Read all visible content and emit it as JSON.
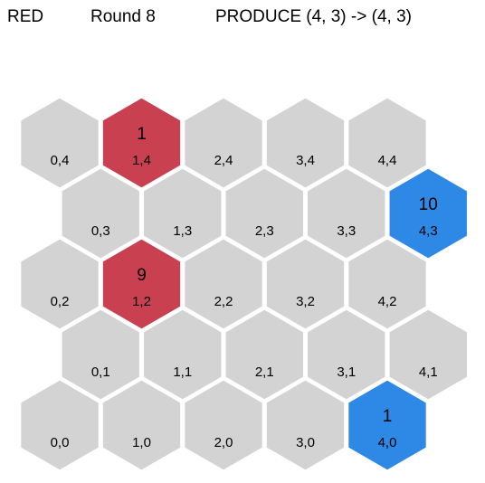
{
  "header": {
    "player": "RED",
    "round": "Round 8",
    "action": "PRODUCE (4, 3) -> (4, 3)"
  },
  "colors": {
    "neutral": "#d3d3d3",
    "red": "#c94150",
    "blue": "#2e88e6"
  },
  "board": {
    "cols": 5,
    "rows": 5,
    "cells": [
      {
        "q": 0,
        "r": 4,
        "label": "0,4",
        "owner": "neutral",
        "value": ""
      },
      {
        "q": 1,
        "r": 4,
        "label": "1,4",
        "owner": "red",
        "value": "1"
      },
      {
        "q": 2,
        "r": 4,
        "label": "2,4",
        "owner": "neutral",
        "value": ""
      },
      {
        "q": 3,
        "r": 4,
        "label": "3,4",
        "owner": "neutral",
        "value": ""
      },
      {
        "q": 4,
        "r": 4,
        "label": "4,4",
        "owner": "neutral",
        "value": ""
      },
      {
        "q": 0,
        "r": 3,
        "label": "0,3",
        "owner": "neutral",
        "value": ""
      },
      {
        "q": 1,
        "r": 3,
        "label": "1,3",
        "owner": "neutral",
        "value": ""
      },
      {
        "q": 2,
        "r": 3,
        "label": "2,3",
        "owner": "neutral",
        "value": ""
      },
      {
        "q": 3,
        "r": 3,
        "label": "3,3",
        "owner": "neutral",
        "value": ""
      },
      {
        "q": 4,
        "r": 3,
        "label": "4,3",
        "owner": "blue",
        "value": "10"
      },
      {
        "q": 0,
        "r": 2,
        "label": "0,2",
        "owner": "neutral",
        "value": ""
      },
      {
        "q": 1,
        "r": 2,
        "label": "1,2",
        "owner": "red",
        "value": "9"
      },
      {
        "q": 2,
        "r": 2,
        "label": "2,2",
        "owner": "neutral",
        "value": ""
      },
      {
        "q": 3,
        "r": 2,
        "label": "3,2",
        "owner": "neutral",
        "value": ""
      },
      {
        "q": 4,
        "r": 2,
        "label": "4,2",
        "owner": "neutral",
        "value": ""
      },
      {
        "q": 0,
        "r": 1,
        "label": "0,1",
        "owner": "neutral",
        "value": ""
      },
      {
        "q": 1,
        "r": 1,
        "label": "1,1",
        "owner": "neutral",
        "value": ""
      },
      {
        "q": 2,
        "r": 1,
        "label": "2,1",
        "owner": "neutral",
        "value": ""
      },
      {
        "q": 3,
        "r": 1,
        "label": "3,1",
        "owner": "neutral",
        "value": ""
      },
      {
        "q": 4,
        "r": 1,
        "label": "4,1",
        "owner": "neutral",
        "value": ""
      },
      {
        "q": 0,
        "r": 0,
        "label": "0,0",
        "owner": "neutral",
        "value": ""
      },
      {
        "q": 1,
        "r": 0,
        "label": "1,0",
        "owner": "neutral",
        "value": ""
      },
      {
        "q": 2,
        "r": 0,
        "label": "2,0",
        "owner": "neutral",
        "value": ""
      },
      {
        "q": 3,
        "r": 0,
        "label": "3,0",
        "owner": "neutral",
        "value": ""
      },
      {
        "q": 4,
        "r": 0,
        "label": "4,0",
        "owner": "blue",
        "value": "1"
      }
    ]
  }
}
